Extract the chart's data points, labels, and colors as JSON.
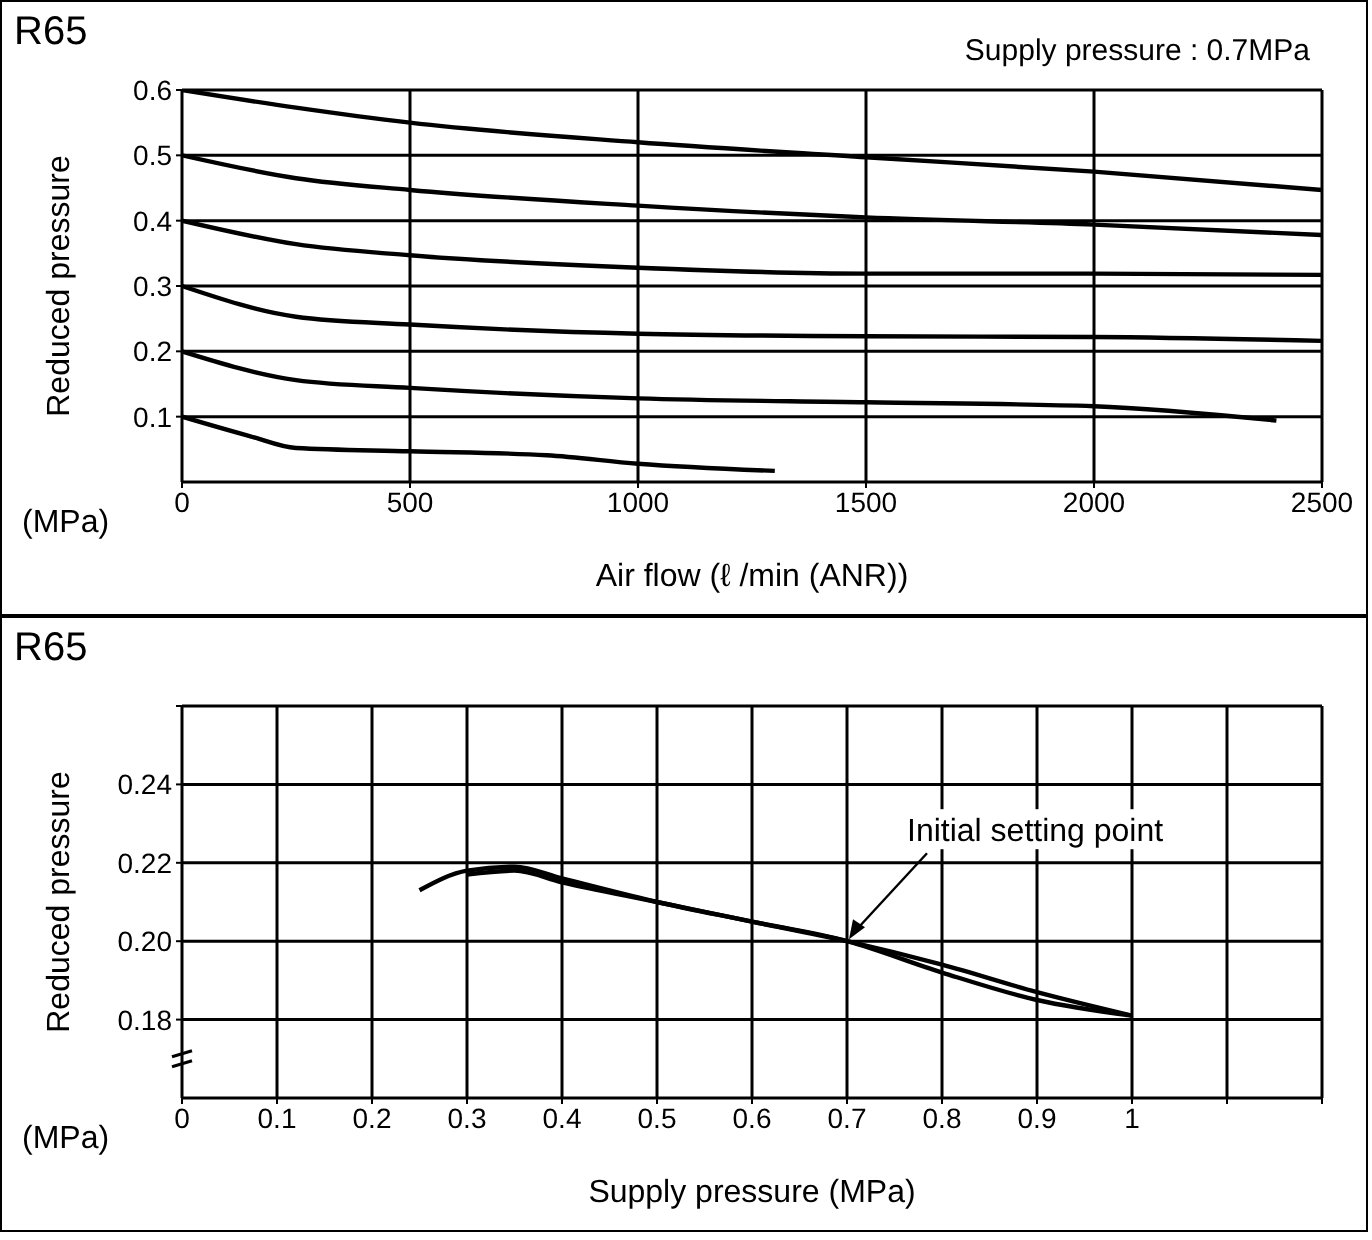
{
  "chart_data": [
    {
      "type": "line",
      "title": "R65",
      "subtitle": "Supply pressure : 0.7MPa",
      "xlabel": "Air flow (ℓ /min (ANR))",
      "ylabel": "Reduced pressure",
      "annotations": [
        "(MPa)"
      ],
      "xlim": [
        0,
        2500
      ],
      "xticks": [
        0,
        500,
        1000,
        1500,
        2000,
        2500
      ],
      "ylim": [
        0,
        0.6
      ],
      "yticks": [
        0.1,
        0.2,
        0.3,
        0.4,
        0.5,
        0.6
      ],
      "grid": true,
      "series": [
        {
          "color": "#000000",
          "x": [
            0,
            250,
            500,
            1000,
            1500,
            2000,
            2500
          ],
          "values": [
            0.6,
            0.573,
            0.55,
            0.52,
            0.497,
            0.475,
            0.447
          ]
        },
        {
          "color": "#000000",
          "x": [
            0,
            250,
            500,
            1000,
            1500,
            2000,
            2500
          ],
          "values": [
            0.5,
            0.465,
            0.447,
            0.423,
            0.405,
            0.394,
            0.378
          ]
        },
        {
          "color": "#000000",
          "x": [
            0,
            250,
            500,
            1000,
            1500,
            2000,
            2500
          ],
          "values": [
            0.4,
            0.364,
            0.347,
            0.328,
            0.319,
            0.319,
            0.317
          ]
        },
        {
          "color": "#000000",
          "x": [
            0,
            250,
            500,
            1000,
            1500,
            2000,
            2500
          ],
          "values": [
            0.3,
            0.253,
            0.241,
            0.227,
            0.223,
            0.222,
            0.216
          ]
        },
        {
          "color": "#000000",
          "x": [
            0,
            250,
            500,
            1000,
            1500,
            2000,
            2400
          ],
          "values": [
            0.2,
            0.156,
            0.144,
            0.128,
            0.122,
            0.116,
            0.094
          ]
        },
        {
          "color": "#000000",
          "x": [
            0,
            150,
            250,
            500,
            800,
            1000,
            1300
          ],
          "values": [
            0.1,
            0.07,
            0.052,
            0.047,
            0.041,
            0.028,
            0.017
          ]
        }
      ]
    },
    {
      "type": "line",
      "title": "R65",
      "xlabel": "Supply pressure (MPa)",
      "ylabel": "Reduced pressure",
      "annotations": [
        "(MPa)",
        {
          "text": "Initial setting point",
          "x": 0.7,
          "y": 0.2
        }
      ],
      "xlim": [
        0,
        1.2
      ],
      "xticks": [
        0,
        0.1,
        0.2,
        0.3,
        0.4,
        0.5,
        0.6,
        0.7,
        0.8,
        0.9,
        1,
        {
          "value": 1.1,
          "label": null
        },
        {
          "value": 1.2,
          "label": null
        }
      ],
      "ylim": [
        0.16,
        0.26
      ],
      "yticks": [
        0.18,
        {
          "value": 0.2,
          "label": "0.20"
        },
        0.22,
        0.24,
        {
          "value": 0.26,
          "label": null
        }
      ],
      "grid": true,
      "series": [
        {
          "color": "#000000",
          "x": [
            0.25,
            0.3,
            0.35,
            0.4,
            0.5,
            0.6,
            0.7,
            0.8,
            0.9,
            1
          ],
          "values": [
            0.213,
            0.218,
            0.219,
            0.216,
            0.21,
            0.205,
            0.2,
            0.194,
            0.187,
            0.181
          ]
        },
        {
          "color": "#000000",
          "x": [
            0.3,
            0.35,
            0.4,
            0.5,
            0.6,
            0.7,
            0.8,
            0.9,
            1
          ],
          "values": [
            0.217,
            0.218,
            0.215,
            0.21,
            0.205,
            0.2,
            0.192,
            0.185,
            0.181
          ]
        }
      ]
    }
  ]
}
